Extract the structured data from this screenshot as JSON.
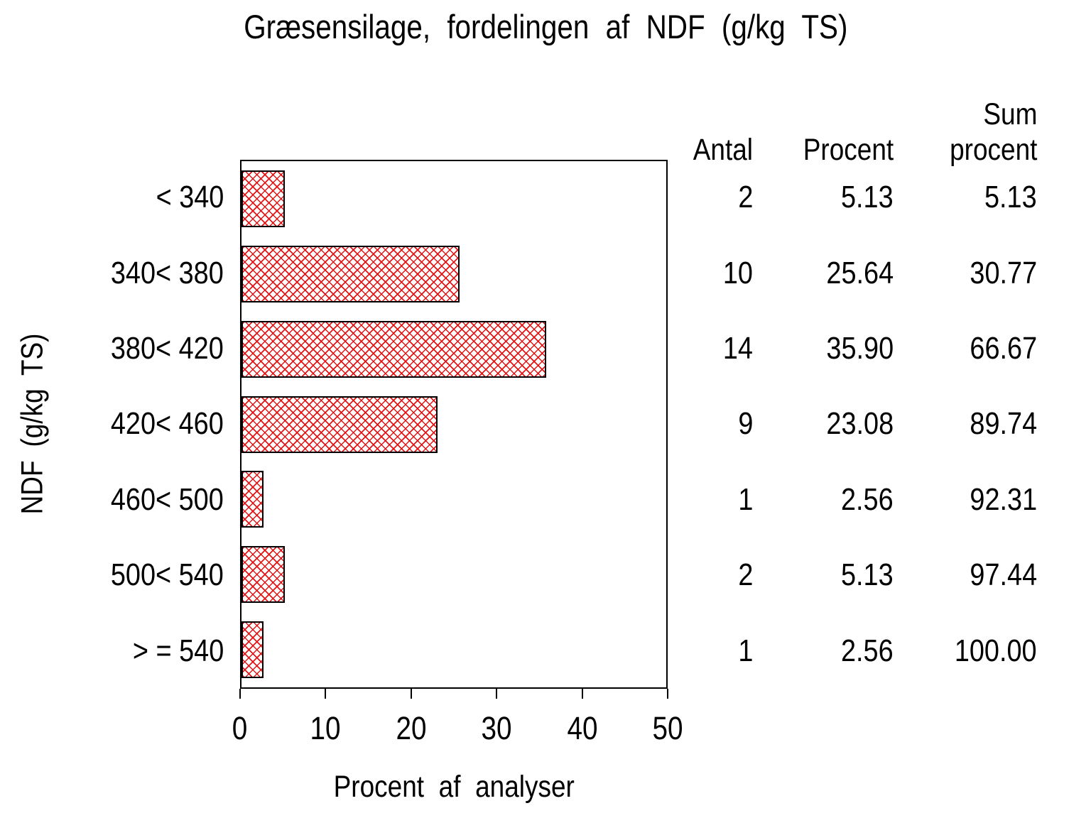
{
  "title": "Græsensilage, fordelingen af NDF (g/kg TS)",
  "axes": {
    "x_label": "Procent af analyser",
    "y_label": "NDF (g/kg TS)"
  },
  "table": {
    "header": {
      "sum_top": "Sum",
      "antal": "Antal",
      "procent": "Procent",
      "sum_bottom": "procent"
    },
    "rows": [
      {
        "antal": "2",
        "procent": "5.13",
        "sum_procent": "5.13"
      },
      {
        "antal": "10",
        "procent": "25.64",
        "sum_procent": "30.77"
      },
      {
        "antal": "14",
        "procent": "35.90",
        "sum_procent": "66.67"
      },
      {
        "antal": "9",
        "procent": "23.08",
        "sum_procent": "89.74"
      },
      {
        "antal": "1",
        "procent": "2.56",
        "sum_procent": "92.31"
      },
      {
        "antal": "2",
        "procent": "5.13",
        "sum_procent": "97.44"
      },
      {
        "antal": "1",
        "procent": "2.56",
        "sum_procent": "100.00"
      }
    ]
  },
  "chart_data": {
    "type": "bar",
    "orientation": "horizontal",
    "title": "Græsensilage, fordelingen af NDF (g/kg TS)",
    "xlabel": "Procent af analyser",
    "ylabel": "NDF (g/kg TS)",
    "categories": [
      "< 340",
      "340< 380",
      "380< 420",
      "420< 460",
      "460< 500",
      "500< 540",
      "> = 540"
    ],
    "values": [
      5.13,
      25.64,
      35.9,
      23.08,
      2.56,
      5.13,
      2.56
    ],
    "counts": [
      2,
      10,
      14,
      9,
      1,
      2,
      1
    ],
    "cumulative_percent": [
      5.13,
      30.77,
      66.67,
      89.74,
      92.31,
      97.44,
      100.0
    ],
    "xlim": [
      0,
      50
    ],
    "xticks": [
      0,
      10,
      20,
      30,
      40,
      50
    ],
    "grid": false,
    "legend": "none",
    "bar_pattern": "red-crosshatch",
    "bar_hatch_color": "#e41414",
    "bar_border_color": "#000000",
    "frame_color": "#000000",
    "background_color": "#ffffff",
    "text_color": "#000000"
  }
}
